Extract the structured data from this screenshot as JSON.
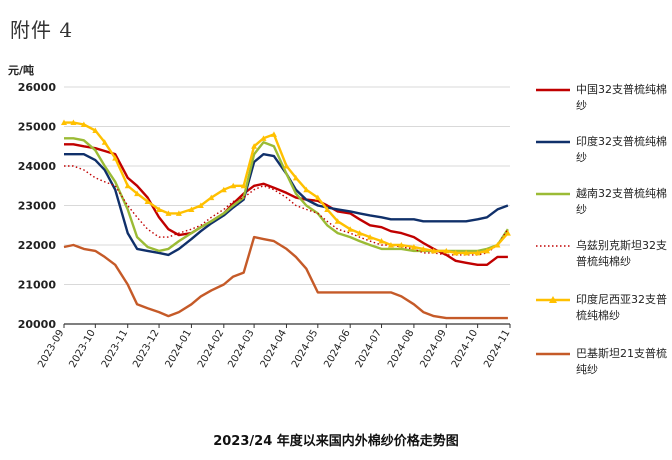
{
  "page_title": "附件 4",
  "caption": "2023/24 年度以来国内外棉纱价格走势图",
  "chart_data": {
    "type": "line",
    "yunit": "元/吨",
    "ylim": [
      20000,
      26000
    ],
    "yticks": [
      20000,
      21000,
      22000,
      23000,
      24000,
      25000,
      26000
    ],
    "xlim": [
      "2023-09-01",
      "2024-11-01"
    ],
    "xticks": [
      "2023-09",
      "2023-10",
      "2023-11",
      "2023-12",
      "2024-01",
      "2024-02",
      "2024-03",
      "2024-04",
      "2024-05",
      "2024-06",
      "2024-07",
      "2024-08",
      "2024-09",
      "2024-10",
      "2024-11"
    ],
    "grid": "horizontal",
    "legend_position": "right",
    "series": [
      {
        "name": "中国32支普梳纯棉纱",
        "color": "#c00000",
        "style": "solid",
        "marker": "none",
        "x": [
          "2023-09-01",
          "2023-09-10",
          "2023-09-20",
          "2023-10-01",
          "2023-10-10",
          "2023-10-20",
          "2023-11-01",
          "2023-11-10",
          "2023-11-20",
          "2023-12-01",
          "2023-12-10",
          "2023-12-20",
          "2024-01-01",
          "2024-01-10",
          "2024-01-20",
          "2024-02-01",
          "2024-02-10",
          "2024-02-20",
          "2024-03-01",
          "2024-03-10",
          "2024-03-20",
          "2024-04-01",
          "2024-04-10",
          "2024-04-20",
          "2024-05-01",
          "2024-05-10",
          "2024-05-20",
          "2024-06-01",
          "2024-06-10",
          "2024-06-20",
          "2024-07-01",
          "2024-07-10",
          "2024-07-20",
          "2024-08-01",
          "2024-08-10",
          "2024-08-20",
          "2024-09-01",
          "2024-09-10",
          "2024-09-20",
          "2024-10-01",
          "2024-10-10",
          "2024-10-20",
          "2024-10-30"
        ],
        "values": [
          24550,
          24550,
          24500,
          24450,
          24380,
          24300,
          23700,
          23500,
          23200,
          22700,
          22400,
          22250,
          22300,
          22450,
          22600,
          22800,
          23050,
          23300,
          23500,
          23550,
          23450,
          23320,
          23200,
          23150,
          23120,
          23000,
          22850,
          22800,
          22650,
          22500,
          22450,
          22350,
          22300,
          22200,
          22050,
          21900,
          21750,
          21600,
          21550,
          21500,
          21500,
          21700,
          21700
        ]
      },
      {
        "name": "印度32支普梳纯棉纱",
        "color": "#10306a",
        "style": "solid",
        "marker": "none",
        "x": [
          "2023-09-01",
          "2023-09-10",
          "2023-09-20",
          "2023-10-01",
          "2023-10-10",
          "2023-10-20",
          "2023-11-01",
          "2023-11-10",
          "2023-11-20",
          "2023-12-01",
          "2023-12-10",
          "2023-12-20",
          "2024-01-01",
          "2024-01-10",
          "2024-01-20",
          "2024-02-01",
          "2024-02-10",
          "2024-02-20",
          "2024-03-01",
          "2024-03-10",
          "2024-03-20",
          "2024-04-01",
          "2024-04-10",
          "2024-04-20",
          "2024-05-01",
          "2024-05-10",
          "2024-05-20",
          "2024-06-01",
          "2024-06-10",
          "2024-06-20",
          "2024-07-01",
          "2024-07-10",
          "2024-07-20",
          "2024-08-01",
          "2024-08-10",
          "2024-08-20",
          "2024-09-01",
          "2024-09-10",
          "2024-09-20",
          "2024-10-01",
          "2024-10-10",
          "2024-10-20",
          "2024-10-30"
        ],
        "values": [
          24300,
          24300,
          24300,
          24150,
          23900,
          23400,
          22300,
          21900,
          21850,
          21800,
          21750,
          21900,
          22150,
          22350,
          22550,
          22750,
          22950,
          23150,
          24100,
          24300,
          24250,
          23800,
          23400,
          23150,
          23000,
          22950,
          22900,
          22850,
          22800,
          22750,
          22700,
          22650,
          22650,
          22650,
          22600,
          22600,
          22600,
          22600,
          22600,
          22650,
          22700,
          22900,
          23000
        ]
      },
      {
        "name": "越南32支普梳纯棉纱",
        "color": "#9bbb35",
        "style": "solid",
        "marker": "none",
        "x": [
          "2023-09-01",
          "2023-09-10",
          "2023-09-20",
          "2023-10-01",
          "2023-10-10",
          "2023-10-20",
          "2023-11-01",
          "2023-11-10",
          "2023-11-20",
          "2023-12-01",
          "2023-12-10",
          "2023-12-20",
          "2024-01-01",
          "2024-01-10",
          "2024-01-20",
          "2024-02-01",
          "2024-02-10",
          "2024-02-20",
          "2024-03-01",
          "2024-03-10",
          "2024-03-20",
          "2024-04-01",
          "2024-04-10",
          "2024-04-20",
          "2024-05-01",
          "2024-05-10",
          "2024-05-20",
          "2024-06-01",
          "2024-06-10",
          "2024-06-20",
          "2024-07-01",
          "2024-07-10",
          "2024-07-20",
          "2024-08-01",
          "2024-08-10",
          "2024-08-20",
          "2024-09-01",
          "2024-09-10",
          "2024-09-20",
          "2024-10-01",
          "2024-10-10",
          "2024-10-20",
          "2024-10-30"
        ],
        "values": [
          24700,
          24700,
          24650,
          24400,
          24000,
          23600,
          22900,
          22200,
          21950,
          21850,
          21900,
          22100,
          22300,
          22450,
          22600,
          22800,
          23000,
          23200,
          24300,
          24600,
          24500,
          23800,
          23300,
          23000,
          22800,
          22500,
          22300,
          22200,
          22100,
          22000,
          21900,
          21900,
          21900,
          21850,
          21850,
          21850,
          21850,
          21850,
          21850,
          21850,
          21900,
          22000,
          22400
        ]
      },
      {
        "name": "乌兹别克斯坦32支普梳纯棉纱",
        "color": "#c00000",
        "style": "dotted",
        "marker": "none",
        "x": [
          "2023-09-01",
          "2023-09-10",
          "2023-09-20",
          "2023-10-01",
          "2023-10-10",
          "2023-10-20",
          "2023-11-01",
          "2023-11-10",
          "2023-11-20",
          "2023-12-01",
          "2023-12-10",
          "2023-12-20",
          "2024-01-01",
          "2024-01-10",
          "2024-01-20",
          "2024-02-01",
          "2024-02-10",
          "2024-02-20",
          "2024-03-01",
          "2024-03-10",
          "2024-03-20",
          "2024-04-01",
          "2024-04-10",
          "2024-04-20",
          "2024-05-01",
          "2024-05-10",
          "2024-05-20",
          "2024-06-01",
          "2024-06-10",
          "2024-06-20",
          "2024-07-01",
          "2024-07-10",
          "2024-07-20",
          "2024-08-01",
          "2024-08-10",
          "2024-08-20",
          "2024-09-01",
          "2024-09-10",
          "2024-09-20",
          "2024-10-01",
          "2024-10-10",
          "2024-10-20",
          "2024-10-30"
        ],
        "values": [
          24000,
          24000,
          23900,
          23700,
          23600,
          23500,
          23000,
          22700,
          22400,
          22200,
          22200,
          22300,
          22400,
          22500,
          22700,
          22900,
          23100,
          23200,
          23400,
          23500,
          23400,
          23200,
          23000,
          22900,
          22800,
          22600,
          22400,
          22300,
          22200,
          22100,
          22000,
          22000,
          21950,
          21900,
          21800,
          21800,
          21750,
          21750,
          21750,
          21750,
          21800,
          22000,
          22400
        ]
      },
      {
        "name": "印度尼西亚32支普梳纯棉纱",
        "color": "#ffc000",
        "style": "solid",
        "marker": "triangle",
        "x": [
          "2023-09-01",
          "2023-09-10",
          "2023-09-20",
          "2023-10-01",
          "2023-10-10",
          "2023-10-20",
          "2023-11-01",
          "2023-11-10",
          "2023-11-20",
          "2023-12-01",
          "2023-12-10",
          "2023-12-20",
          "2024-01-01",
          "2024-01-10",
          "2024-01-20",
          "2024-02-01",
          "2024-02-10",
          "2024-02-20",
          "2024-03-01",
          "2024-03-10",
          "2024-03-20",
          "2024-04-01",
          "2024-04-10",
          "2024-04-20",
          "2024-05-01",
          "2024-05-10",
          "2024-05-20",
          "2024-06-01",
          "2024-06-10",
          "2024-06-20",
          "2024-07-01",
          "2024-07-10",
          "2024-07-20",
          "2024-08-01",
          "2024-08-10",
          "2024-08-20",
          "2024-09-01",
          "2024-09-10",
          "2024-09-20",
          "2024-10-01",
          "2024-10-10",
          "2024-10-20",
          "2024-10-30"
        ],
        "values": [
          25100,
          25100,
          25050,
          24900,
          24600,
          24200,
          23500,
          23300,
          23100,
          22900,
          22800,
          22800,
          22900,
          23000,
          23200,
          23400,
          23500,
          23500,
          24500,
          24700,
          24800,
          24000,
          23700,
          23400,
          23200,
          22900,
          22600,
          22400,
          22300,
          22200,
          22100,
          22000,
          22000,
          21950,
          21900,
          21850,
          21850,
          21800,
          21800,
          21800,
          21850,
          22000,
          22300
        ]
      },
      {
        "name": "巴基斯坦21支普梳纯纱",
        "color": "#c55a28",
        "style": "solid",
        "marker": "none",
        "x": [
          "2023-09-01",
          "2023-09-10",
          "2023-09-20",
          "2023-10-01",
          "2023-10-10",
          "2023-10-20",
          "2023-11-01",
          "2023-11-10",
          "2023-11-20",
          "2023-12-01",
          "2023-12-10",
          "2023-12-20",
          "2024-01-01",
          "2024-01-10",
          "2024-01-20",
          "2024-02-01",
          "2024-02-10",
          "2024-02-20",
          "2024-03-01",
          "2024-03-10",
          "2024-03-20",
          "2024-04-01",
          "2024-04-10",
          "2024-04-20",
          "2024-05-01",
          "2024-05-10",
          "2024-05-20",
          "2024-06-01",
          "2024-06-10",
          "2024-06-20",
          "2024-07-01",
          "2024-07-10",
          "2024-07-20",
          "2024-08-01",
          "2024-08-10",
          "2024-08-20",
          "2024-09-01",
          "2024-09-10",
          "2024-09-20",
          "2024-10-01",
          "2024-10-10",
          "2024-10-20",
          "2024-10-30"
        ],
        "values": [
          21950,
          22000,
          21900,
          21850,
          21700,
          21500,
          21000,
          20500,
          20400,
          20300,
          20200,
          20300,
          20500,
          20700,
          20850,
          21000,
          21200,
          21300,
          22200,
          22150,
          22100,
          21900,
          21700,
          21400,
          20800,
          20800,
          20800,
          20800,
          20800,
          20800,
          20800,
          20800,
          20700,
          20500,
          20300,
          20200,
          20150,
          20150,
          20150,
          20150,
          20150,
          20150,
          20150
        ]
      }
    ]
  }
}
